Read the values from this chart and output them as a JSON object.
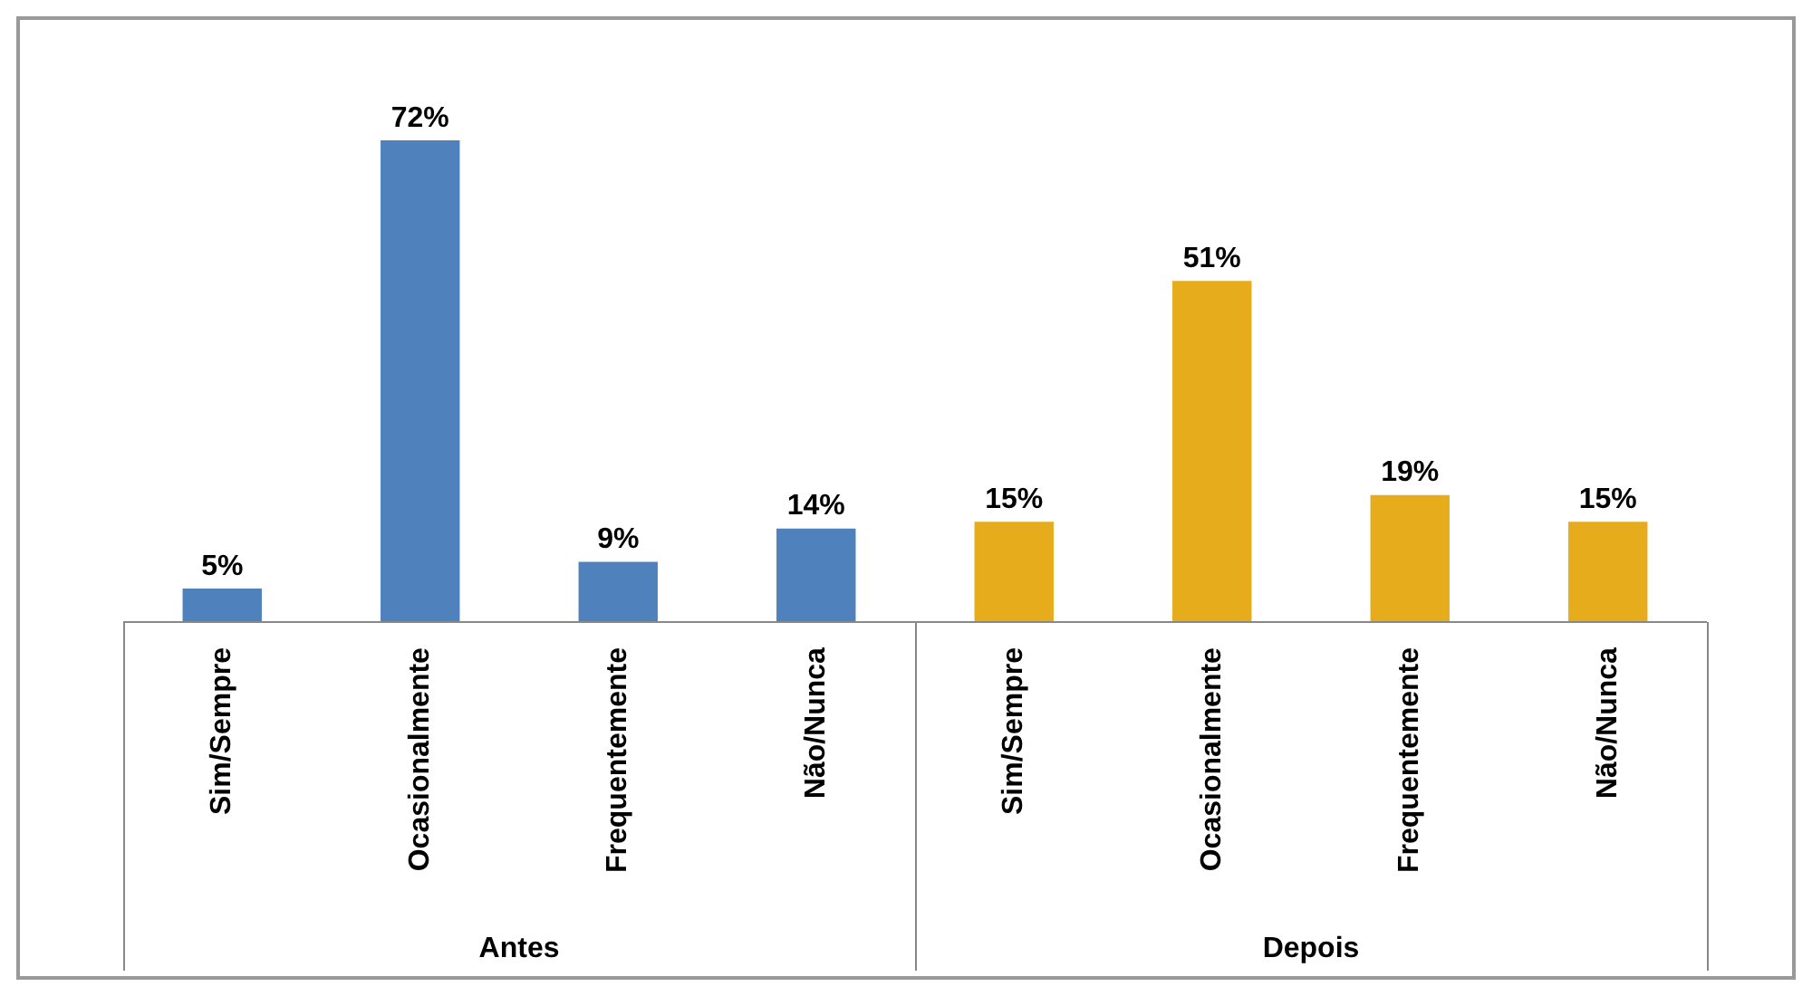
{
  "chart_data": {
    "type": "bar",
    "categories": [
      "Sim/Sempre",
      "Ocasionalmente",
      "Frequentemente",
      "Não/Nunca",
      "Sim/Sempre",
      "Ocasionalmente",
      "Frequentemente",
      "Não/Nunca"
    ],
    "series": [
      {
        "color": "#4f81bd",
        "values": [
          5,
          72,
          9,
          14,
          null,
          null,
          null,
          null
        ],
        "value_labels": [
          "5%",
          "72%",
          "9%",
          "14%",
          null,
          null,
          null,
          null
        ]
      },
      {
        "color": "#e6ac1c",
        "values": [
          null,
          null,
          null,
          null,
          15,
          51,
          19,
          15
        ],
        "value_labels": [
          null,
          null,
          null,
          null,
          "15%",
          "51%",
          "19%",
          "15%"
        ]
      }
    ],
    "annotations": [
      "Antes",
      "Depois"
    ],
    "tick_labels": "x",
    "grid": false,
    "legend": false
  }
}
